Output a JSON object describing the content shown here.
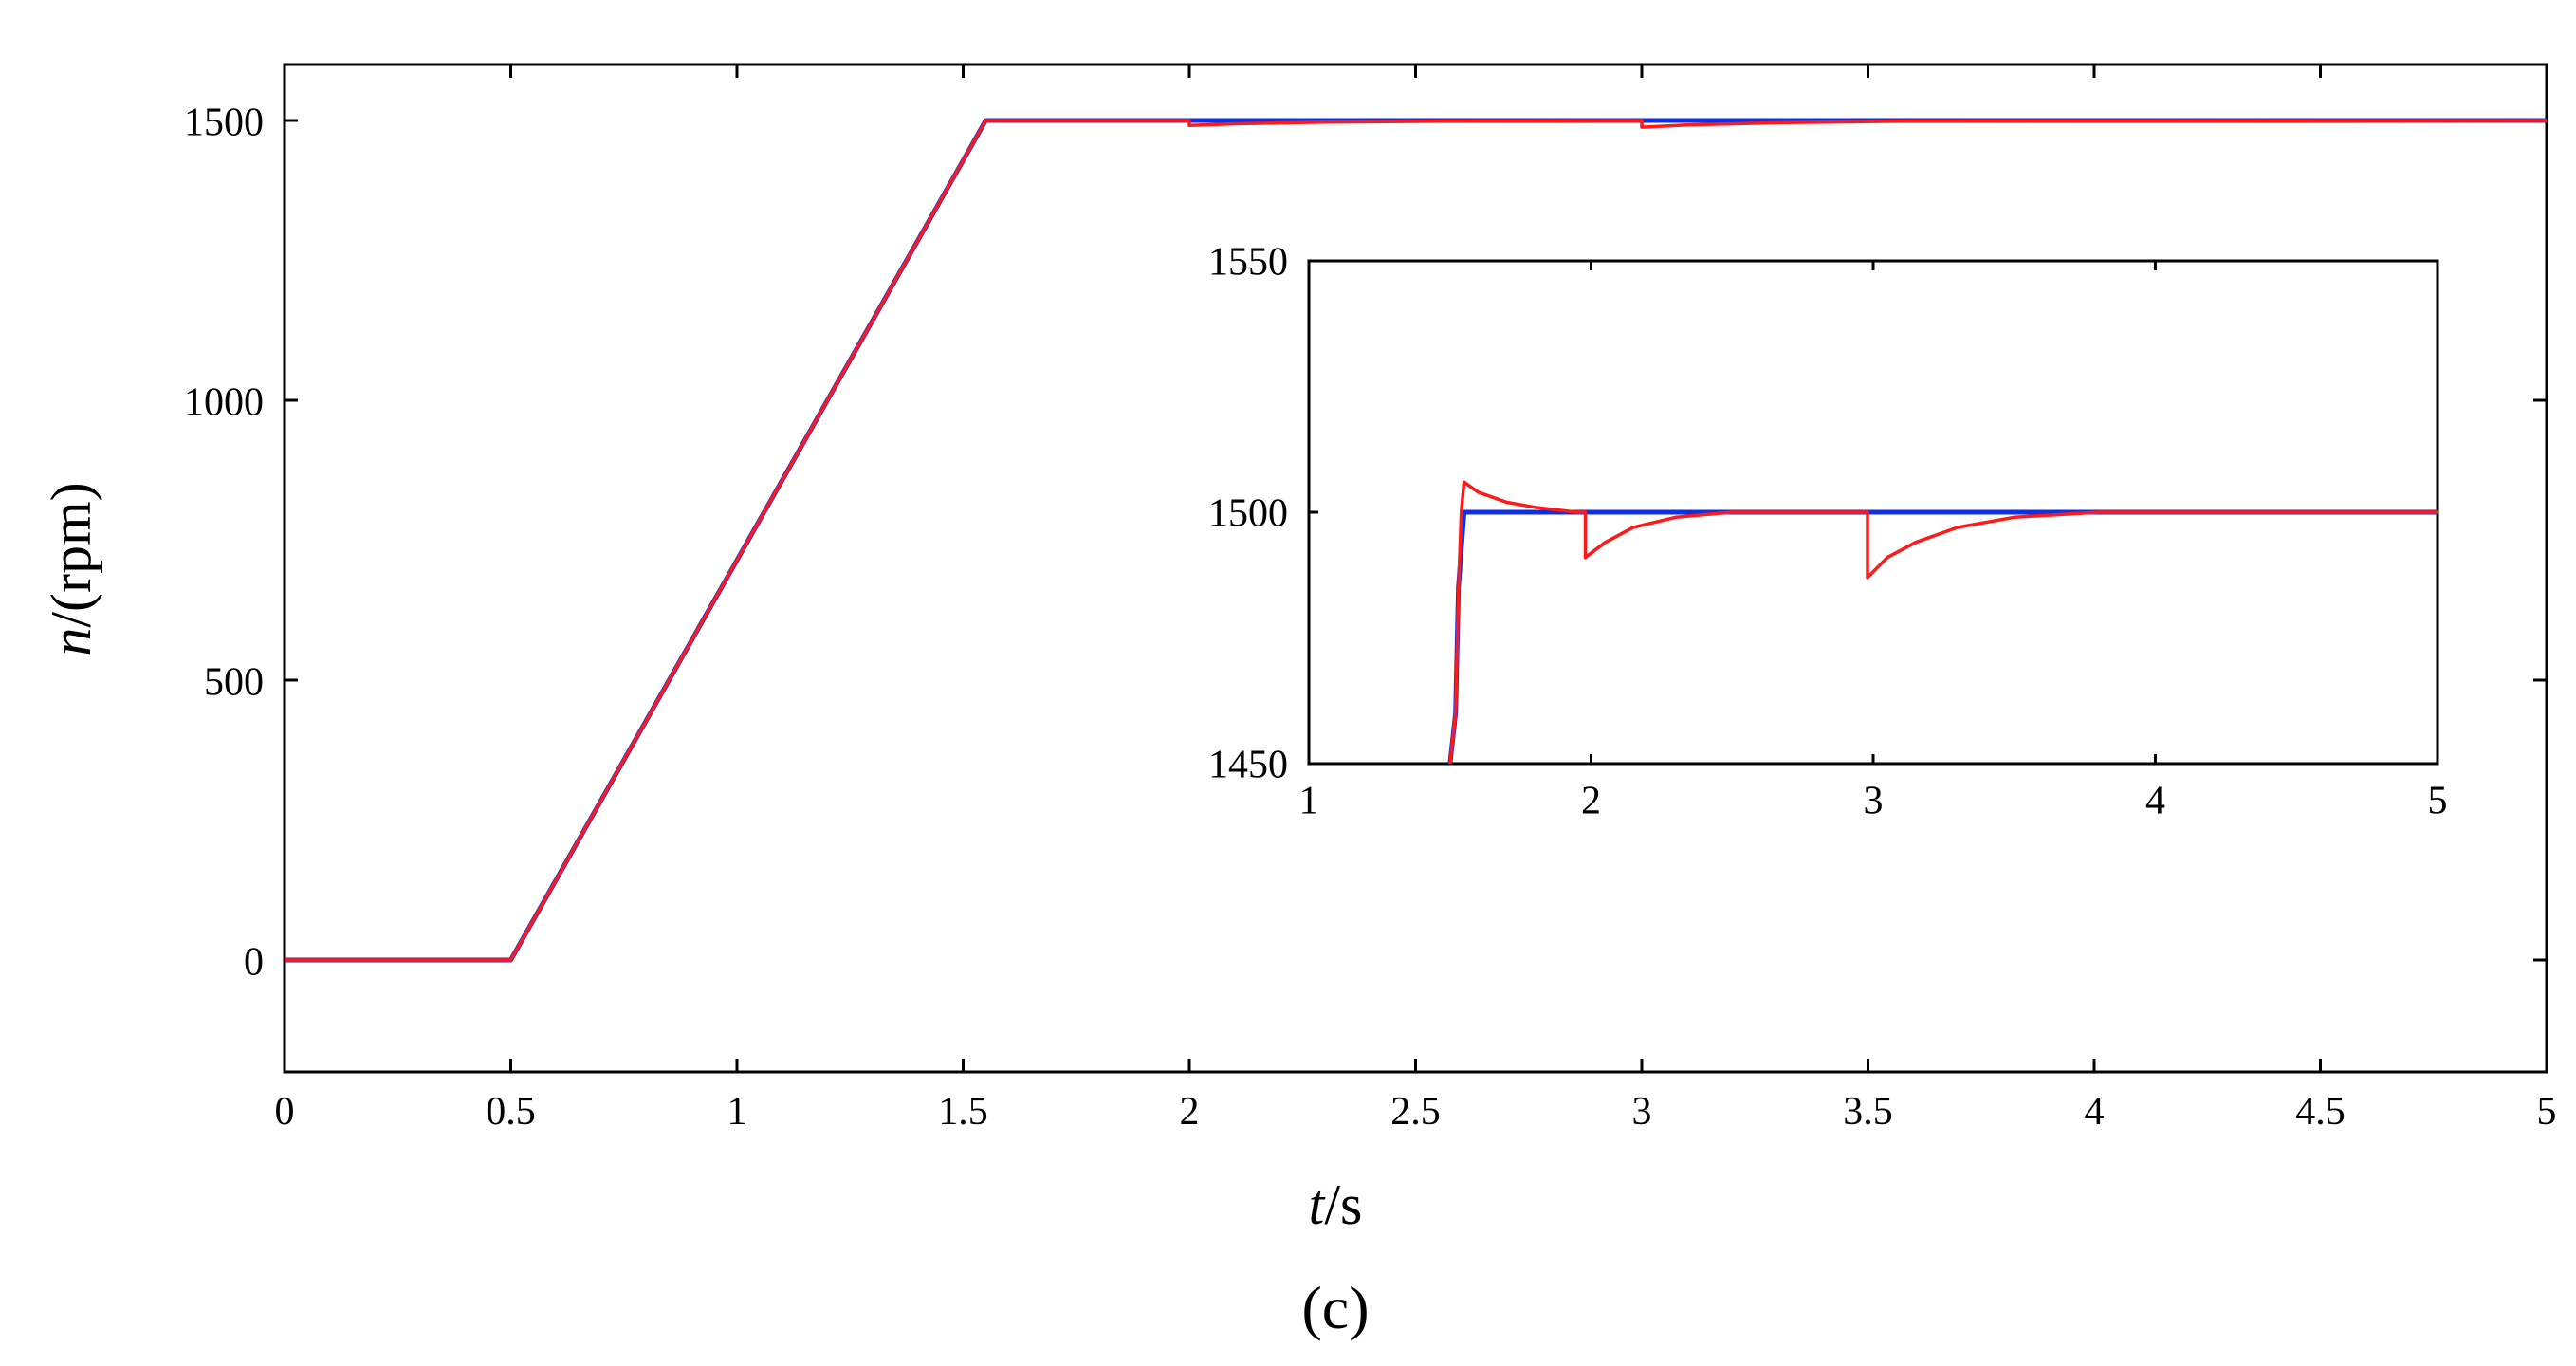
{
  "chart_data": [
    {
      "type": "line",
      "title": "",
      "panel_label": "(c)",
      "xlabel": {
        "italic": "t",
        "rest": "/s"
      },
      "ylabel": {
        "italic": "n",
        "rest": "/(rpm)"
      },
      "xlim": [
        0,
        5
      ],
      "ylim": [
        -200,
        1600
      ],
      "xticks": [
        "0",
        "0.5",
        "1",
        "1.5",
        "2",
        "2.5",
        "3",
        "3.5",
        "4",
        "4.5",
        "5"
      ],
      "yticks": [
        "0",
        "500",
        "1000",
        "1500"
      ],
      "grid": false,
      "legend": "none",
      "series": [
        {
          "color": "#1030e0",
          "x": [
            0,
            0.5,
            1.55,
            5
          ],
          "y": [
            0,
            0,
            1500,
            1500
          ]
        },
        {
          "color": "#ff1a1a",
          "x": [
            0,
            0.5,
            1.55,
            2.0,
            2.0,
            2.1,
            2.3,
            2.6,
            3.0,
            3.0,
            3.1,
            3.3,
            3.6,
            5
          ],
          "y": [
            0,
            0,
            1500,
            1500,
            1491,
            1494,
            1497,
            1499,
            1500,
            1488,
            1492,
            1496,
            1499,
            1500
          ]
        }
      ]
    },
    {
      "type": "line",
      "title": "",
      "inset": true,
      "xlim": [
        1,
        5
      ],
      "ylim": [
        1450,
        1550
      ],
      "xticks": [
        "1",
        "2",
        "3",
        "4",
        "5"
      ],
      "yticks": [
        "1450",
        "1500",
        "1550"
      ],
      "grid": false,
      "legend": "none",
      "series": [
        {
          "color": "#1030e0",
          "x": [
            1.5,
            1.52,
            1.53,
            1.55,
            5
          ],
          "y": [
            1450,
            1460,
            1485,
            1500,
            1500
          ]
        },
        {
          "color": "#ff1a1a",
          "x": [
            1.5,
            1.52,
            1.53,
            1.54,
            1.55,
            1.6,
            1.7,
            1.8,
            1.95,
            1.98,
            1.98,
            2.05,
            2.15,
            2.3,
            2.5,
            2.8,
            2.98,
            2.98,
            3.05,
            3.15,
            3.3,
            3.5,
            3.8,
            4.2,
            5
          ],
          "y": [
            1450,
            1460,
            1484,
            1500,
            1506,
            1504,
            1502,
            1501,
            1500,
            1500,
            1491,
            1494,
            1497,
            1499,
            1500,
            1500,
            1500,
            1487,
            1491,
            1494,
            1497,
            1499,
            1500,
            1500,
            1500
          ]
        }
      ]
    }
  ]
}
